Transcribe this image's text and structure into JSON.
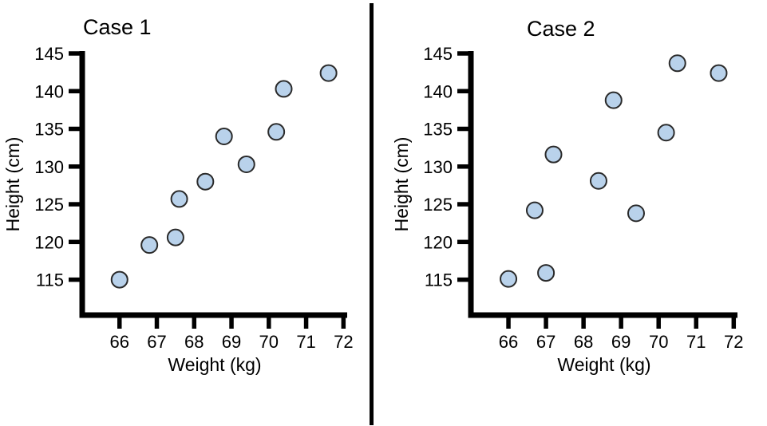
{
  "page": {
    "background": "#ffffff",
    "divider_color": "#000000"
  },
  "chart_data": [
    {
      "type": "scatter",
      "title": "Case 1",
      "xlabel": "Weight (kg)",
      "ylabel": "Height (cm)",
      "xlim": [
        65,
        72.1
      ],
      "ylim": [
        110.3,
        145
      ],
      "xticks": [
        66,
        67,
        68,
        69,
        70,
        71,
        72
      ],
      "yticks": [
        115,
        120,
        125,
        130,
        135,
        140,
        145
      ],
      "grid": false,
      "legend": null,
      "axis_color": "#000000",
      "marker": {
        "shape": "circle",
        "fill": "#b9d2eb",
        "stroke": "#2a2a2a",
        "radius": 10
      },
      "points": [
        {
          "x": 66.0,
          "y": 115.0
        },
        {
          "x": 66.8,
          "y": 119.6
        },
        {
          "x": 67.5,
          "y": 120.6
        },
        {
          "x": 67.6,
          "y": 125.7
        },
        {
          "x": 68.3,
          "y": 128.0
        },
        {
          "x": 68.8,
          "y": 134.0
        },
        {
          "x": 69.4,
          "y": 130.3
        },
        {
          "x": 70.2,
          "y": 134.6
        },
        {
          "x": 70.4,
          "y": 140.3
        },
        {
          "x": 71.6,
          "y": 142.4
        }
      ]
    },
    {
      "type": "scatter",
      "title": "Case 2",
      "xlabel": "Weight (kg)",
      "ylabel": "Height (cm)",
      "xlim": [
        65,
        72.1
      ],
      "ylim": [
        110.3,
        145
      ],
      "xticks": [
        66,
        67,
        68,
        69,
        70,
        71,
        72
      ],
      "yticks": [
        115,
        120,
        125,
        130,
        135,
        140,
        145
      ],
      "grid": false,
      "legend": null,
      "axis_color": "#000000",
      "marker": {
        "shape": "circle",
        "fill": "#b9d2eb",
        "stroke": "#2a2a2a",
        "radius": 10
      },
      "points": [
        {
          "x": 66.0,
          "y": 115.1
        },
        {
          "x": 66.7,
          "y": 124.2
        },
        {
          "x": 67.0,
          "y": 115.9
        },
        {
          "x": 67.2,
          "y": 131.6
        },
        {
          "x": 68.4,
          "y": 128.1
        },
        {
          "x": 68.8,
          "y": 138.8
        },
        {
          "x": 69.4,
          "y": 123.8
        },
        {
          "x": 70.2,
          "y": 134.5
        },
        {
          "x": 70.5,
          "y": 143.7
        },
        {
          "x": 71.6,
          "y": 142.4
        }
      ]
    }
  ]
}
